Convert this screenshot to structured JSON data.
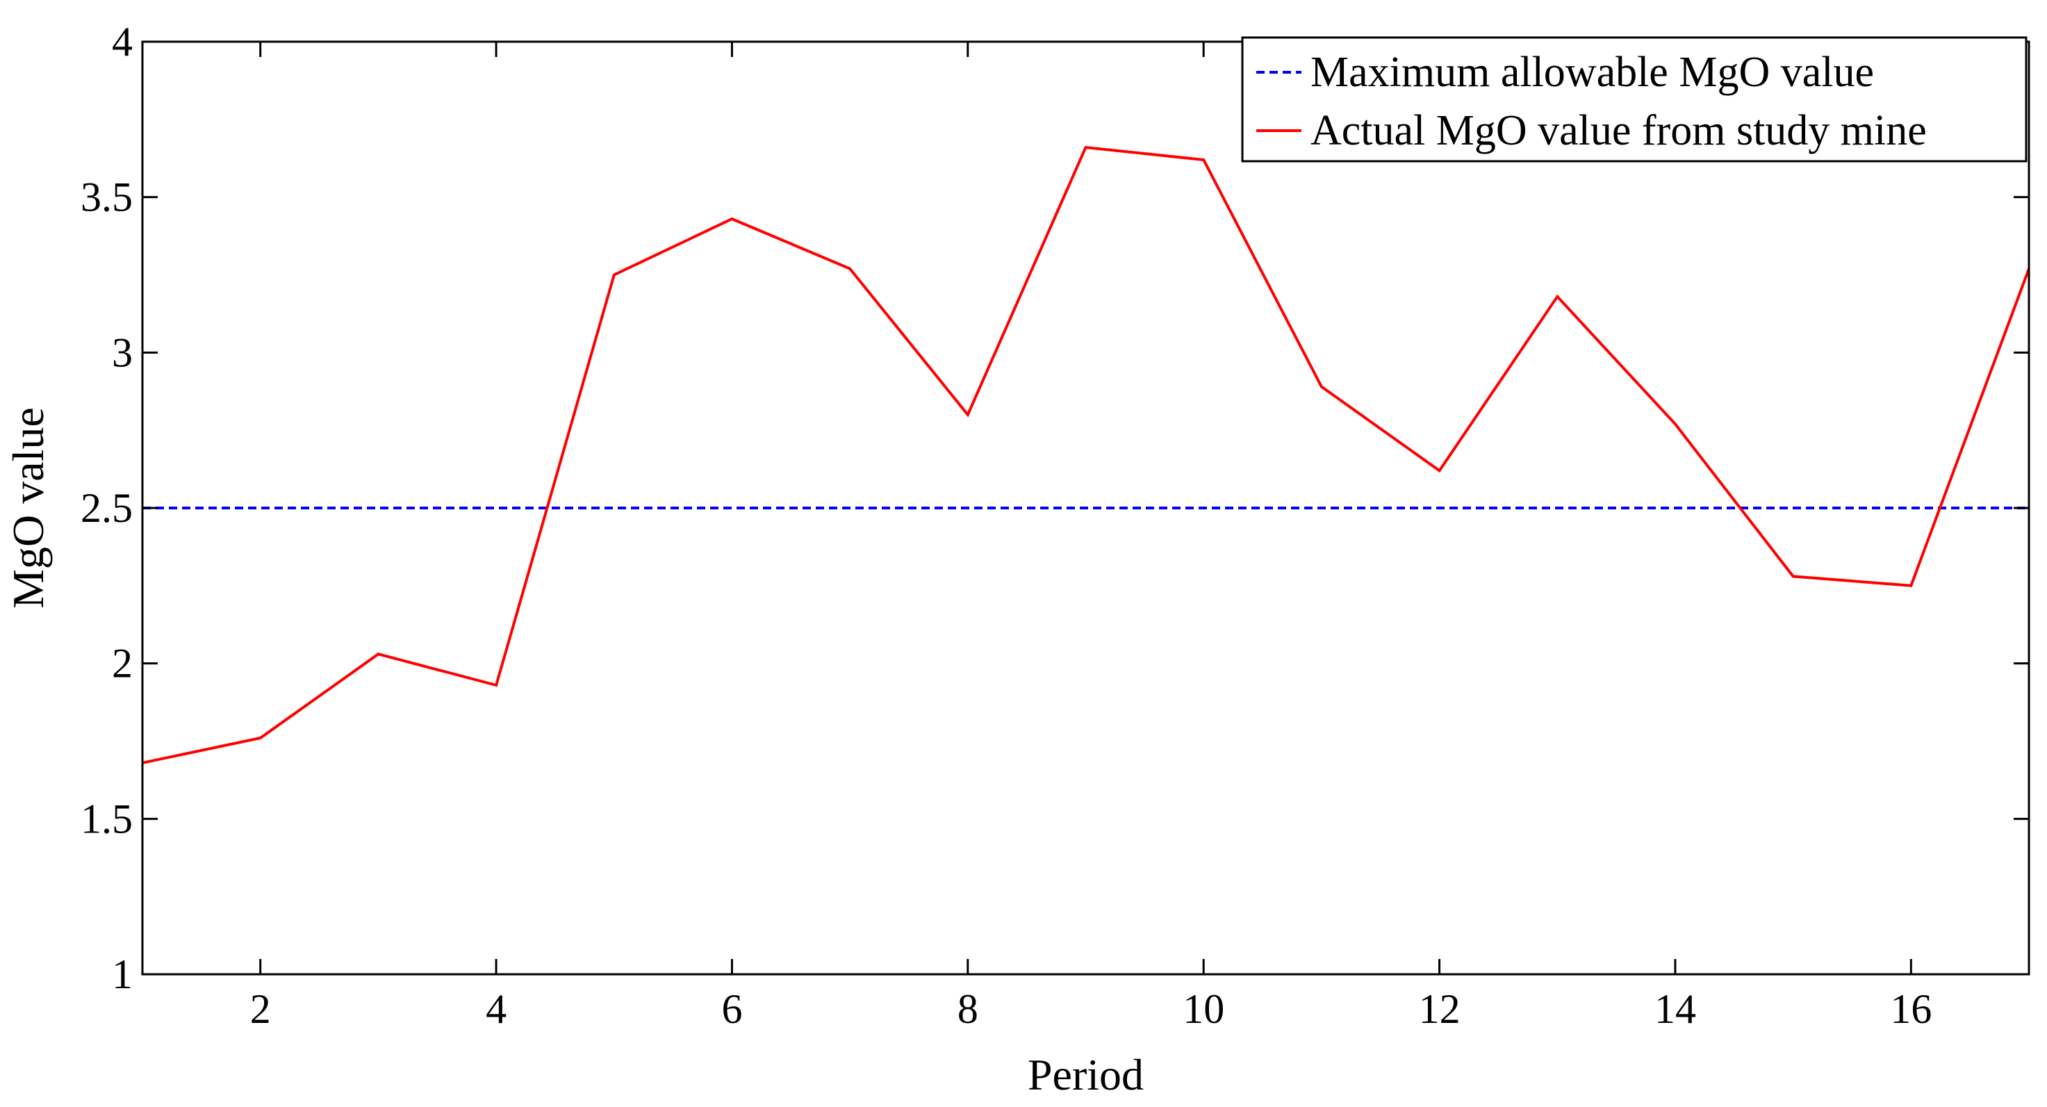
{
  "chart_data": {
    "type": "line",
    "title": "",
    "xlabel": "Period",
    "ylabel": "MgO value",
    "xlim": [
      1,
      17
    ],
    "ylim": [
      1,
      4
    ],
    "xticks": [
      2,
      4,
      6,
      8,
      10,
      12,
      14,
      16
    ],
    "xtick_labels": [
      "2",
      "4",
      "6",
      "8",
      "10",
      "12",
      "14",
      "16"
    ],
    "yticks": [
      1,
      1.5,
      2,
      2.5,
      3,
      3.5,
      4
    ],
    "ytick_labels": [
      "1",
      "1.5",
      "2",
      "2.5",
      "3",
      "3.5",
      "4"
    ],
    "grid": false,
    "legend_position": "top-right",
    "series": [
      {
        "name": "Maximum allowable MgO value",
        "color": "#0000ff",
        "style": "dashed",
        "x": [
          1,
          17
        ],
        "y": [
          2.5,
          2.5
        ]
      },
      {
        "name": "Actual MgO value from study mine",
        "color": "#ff0000",
        "style": "solid",
        "x": [
          1,
          2,
          3,
          4,
          5,
          6,
          7,
          8,
          9,
          10,
          11,
          12,
          13,
          14,
          15,
          16,
          17
        ],
        "y": [
          1.68,
          1.76,
          2.03,
          1.93,
          3.25,
          3.43,
          3.27,
          2.8,
          3.66,
          3.62,
          2.89,
          2.62,
          3.18,
          2.77,
          2.28,
          2.25,
          3.27
        ]
      }
    ]
  }
}
